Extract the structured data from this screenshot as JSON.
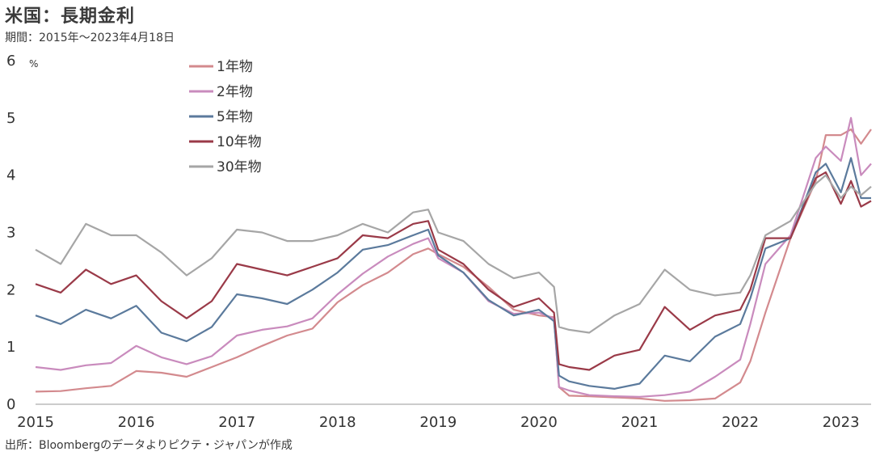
{
  "title": "米国：長期金利",
  "subtitle": "期間：2015年～2023年4月18日",
  "source": "出所：Bloombergのデータよりピクテ・ジャパンが作成",
  "chart_data": {
    "type": "line",
    "ylabel": "%",
    "ylim": [
      0,
      6
    ],
    "yticks": [
      0,
      1,
      2,
      3,
      4,
      5,
      6
    ],
    "xlim": [
      2015.0,
      2023.3
    ],
    "xticks": [
      2015,
      2016,
      2017,
      2018,
      2019,
      2020,
      2021,
      2022,
      2023
    ],
    "grid": false,
    "legend_position": "top-left",
    "series": [
      {
        "name": "1年物",
        "color": "#d38a8e",
        "x": [
          2015.0,
          2015.25,
          2015.5,
          2015.75,
          2016.0,
          2016.25,
          2016.5,
          2016.75,
          2017.0,
          2017.25,
          2017.5,
          2017.75,
          2018.0,
          2018.25,
          2018.5,
          2018.75,
          2018.9,
          2019.0,
          2019.25,
          2019.5,
          2019.75,
          2020.0,
          2020.15,
          2020.2,
          2020.3,
          2020.5,
          2020.75,
          2021.0,
          2021.25,
          2021.5,
          2021.75,
          2022.0,
          2022.1,
          2022.25,
          2022.5,
          2022.75,
          2022.85,
          2023.0,
          2023.1,
          2023.2,
          2023.3
        ],
        "y": [
          0.22,
          0.23,
          0.28,
          0.32,
          0.58,
          0.55,
          0.48,
          0.65,
          0.82,
          1.02,
          1.2,
          1.32,
          1.78,
          2.08,
          2.3,
          2.62,
          2.72,
          2.62,
          2.4,
          2.05,
          1.65,
          1.55,
          1.52,
          0.3,
          0.15,
          0.14,
          0.12,
          0.1,
          0.06,
          0.07,
          0.1,
          0.38,
          0.75,
          1.6,
          2.9,
          3.9,
          4.7,
          4.7,
          4.8,
          4.55,
          4.8
        ]
      },
      {
        "name": "2年物",
        "color": "#c98bbd",
        "x": [
          2015.0,
          2015.25,
          2015.5,
          2015.75,
          2016.0,
          2016.25,
          2016.5,
          2016.75,
          2017.0,
          2017.25,
          2017.5,
          2017.75,
          2018.0,
          2018.25,
          2018.5,
          2018.75,
          2018.9,
          2019.0,
          2019.25,
          2019.5,
          2019.75,
          2020.0,
          2020.15,
          2020.2,
          2020.3,
          2020.5,
          2020.75,
          2021.0,
          2021.25,
          2021.5,
          2021.75,
          2022.0,
          2022.1,
          2022.25,
          2022.5,
          2022.75,
          2022.85,
          2023.0,
          2023.1,
          2023.2,
          2023.3
        ],
        "y": [
          0.65,
          0.6,
          0.68,
          0.72,
          1.02,
          0.82,
          0.7,
          0.84,
          1.2,
          1.3,
          1.36,
          1.5,
          1.92,
          2.28,
          2.58,
          2.8,
          2.9,
          2.55,
          2.3,
          1.8,
          1.58,
          1.6,
          1.5,
          0.3,
          0.24,
          0.16,
          0.14,
          0.13,
          0.16,
          0.22,
          0.48,
          0.78,
          1.4,
          2.45,
          2.95,
          4.3,
          4.5,
          4.25,
          5.0,
          4.0,
          4.2
        ]
      },
      {
        "name": "5年物",
        "color": "#5b7a9c",
        "x": [
          2015.0,
          2015.25,
          2015.5,
          2015.75,
          2016.0,
          2016.25,
          2016.5,
          2016.75,
          2017.0,
          2017.25,
          2017.5,
          2017.75,
          2018.0,
          2018.25,
          2018.5,
          2018.75,
          2018.9,
          2019.0,
          2019.25,
          2019.5,
          2019.75,
          2020.0,
          2020.15,
          2020.2,
          2020.3,
          2020.5,
          2020.75,
          2021.0,
          2021.25,
          2021.5,
          2021.75,
          2022.0,
          2022.1,
          2022.25,
          2022.5,
          2022.75,
          2022.85,
          2023.0,
          2023.1,
          2023.2,
          2023.3
        ],
        "y": [
          1.55,
          1.4,
          1.65,
          1.5,
          1.72,
          1.25,
          1.1,
          1.35,
          1.92,
          1.85,
          1.75,
          2.0,
          2.3,
          2.7,
          2.78,
          2.95,
          3.05,
          2.6,
          2.3,
          1.82,
          1.55,
          1.65,
          1.45,
          0.5,
          0.4,
          0.32,
          0.27,
          0.36,
          0.85,
          0.75,
          1.18,
          1.4,
          1.85,
          2.72,
          2.9,
          4.05,
          4.2,
          3.7,
          4.3,
          3.6,
          3.6
        ]
      },
      {
        "name": "10年物",
        "color": "#9a3a48",
        "x": [
          2015.0,
          2015.25,
          2015.5,
          2015.75,
          2016.0,
          2016.25,
          2016.5,
          2016.75,
          2017.0,
          2017.25,
          2017.5,
          2017.75,
          2018.0,
          2018.25,
          2018.5,
          2018.75,
          2018.9,
          2019.0,
          2019.25,
          2019.5,
          2019.75,
          2020.0,
          2020.15,
          2020.2,
          2020.3,
          2020.5,
          2020.75,
          2021.0,
          2021.25,
          2021.5,
          2021.75,
          2022.0,
          2022.1,
          2022.25,
          2022.5,
          2022.75,
          2022.85,
          2023.0,
          2023.1,
          2023.2,
          2023.3
        ],
        "y": [
          2.1,
          1.95,
          2.35,
          2.1,
          2.25,
          1.8,
          1.5,
          1.8,
          2.45,
          2.35,
          2.25,
          2.4,
          2.55,
          2.95,
          2.9,
          3.15,
          3.2,
          2.7,
          2.45,
          2.0,
          1.7,
          1.85,
          1.6,
          0.7,
          0.65,
          0.6,
          0.85,
          0.95,
          1.7,
          1.3,
          1.55,
          1.65,
          2.0,
          2.9,
          2.9,
          3.95,
          4.05,
          3.5,
          3.9,
          3.45,
          3.55
        ]
      },
      {
        "name": "30年物",
        "color": "#a6a6a6",
        "x": [
          2015.0,
          2015.25,
          2015.5,
          2015.75,
          2016.0,
          2016.25,
          2016.5,
          2016.75,
          2017.0,
          2017.25,
          2017.5,
          2017.75,
          2018.0,
          2018.25,
          2018.5,
          2018.75,
          2018.9,
          2019.0,
          2019.25,
          2019.5,
          2019.75,
          2020.0,
          2020.15,
          2020.2,
          2020.3,
          2020.5,
          2020.75,
          2021.0,
          2021.25,
          2021.5,
          2021.75,
          2022.0,
          2022.1,
          2022.25,
          2022.5,
          2022.75,
          2022.85,
          2023.0,
          2023.1,
          2023.2,
          2023.3
        ],
        "y": [
          2.7,
          2.45,
          3.15,
          2.95,
          2.95,
          2.65,
          2.25,
          2.55,
          3.05,
          3.0,
          2.85,
          2.85,
          2.95,
          3.15,
          3.0,
          3.35,
          3.4,
          3.0,
          2.85,
          2.45,
          2.2,
          2.3,
          2.05,
          1.35,
          1.3,
          1.25,
          1.55,
          1.75,
          2.35,
          2.0,
          1.9,
          1.95,
          2.25,
          2.95,
          3.2,
          3.85,
          4.0,
          3.6,
          3.8,
          3.65,
          3.8
        ]
      }
    ]
  }
}
